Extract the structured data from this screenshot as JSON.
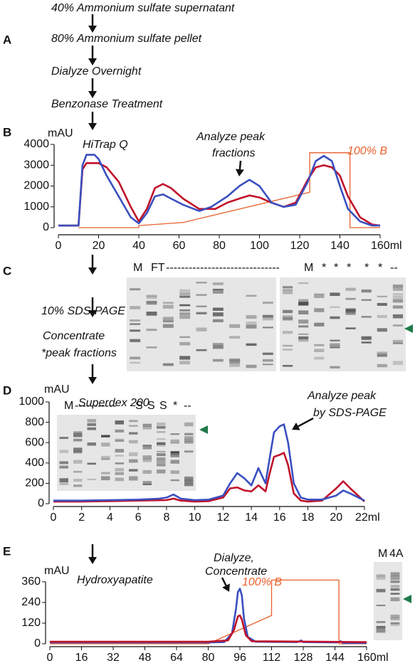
{
  "panel_labels": [
    "A",
    "B",
    "C",
    "D",
    "E"
  ],
  "workflow": {
    "steps": [
      "40% Ammonium sulfate supernatant",
      "80% Ammonium sulfate pellet",
      "Dialyze Overnight",
      "Benzonase Treatment"
    ],
    "c_steps": [
      "10% SDS-PAGE",
      "Concentrate",
      "*peak fractions"
    ]
  },
  "gels": {
    "c_lanes": [
      "M",
      "FT",
      "------------------------------",
      "M",
      "*",
      "*",
      "*",
      "*",
      "*",
      "--"
    ],
    "d_lanes": [
      "M",
      "-----------",
      "S",
      "S",
      "S",
      "*",
      "--"
    ],
    "e_lanes": [
      "M",
      "4A"
    ]
  },
  "chart_data": [
    {
      "type": "line",
      "y_label": "mAU",
      "annotations": [
        "HiTrap Q",
        "Analyze peak",
        "fractions",
        "100% B"
      ],
      "xlim": [
        0,
        160
      ],
      "ylim": [
        0,
        4000
      ],
      "xticks": [
        0,
        20,
        40,
        60,
        80,
        100,
        120,
        140,
        {
          "value": 160,
          "label": "160ml"
        }
      ],
      "yticks": [
        0,
        1000,
        2000,
        3000,
        4000
      ],
      "series": [
        {
          "color": "#e8602c",
          "x": [
            10,
            40,
            40,
            62,
            125,
            125,
            145,
            145,
            160
          ],
          "values": [
            0,
            0,
            100,
            250,
            1700,
            3600,
            3600,
            0,
            0
          ]
        },
        {
          "color": "#c0122a",
          "x": [
            0,
            10,
            12,
            14,
            20,
            24,
            30,
            36,
            40,
            44,
            48,
            52,
            56,
            62,
            70,
            78,
            84,
            90,
            95,
            100,
            106,
            112,
            118,
            124,
            128,
            132,
            136,
            140,
            144,
            150,
            156,
            160
          ],
          "values": [
            100,
            100,
            2800,
            3100,
            3100,
            2900,
            2200,
            1000,
            300,
            900,
            1900,
            2100,
            1900,
            1400,
            900,
            900,
            1200,
            1400,
            1550,
            1450,
            1200,
            1000,
            1200,
            2300,
            2900,
            3000,
            2900,
            2500,
            1500,
            500,
            150,
            100
          ]
        },
        {
          "color": "#3a4fbf",
          "x": [
            0,
            10,
            12,
            14,
            18,
            20,
            24,
            30,
            36,
            40,
            44,
            48,
            52,
            56,
            62,
            70,
            76,
            84,
            90,
            95,
            100,
            106,
            112,
            118,
            124,
            128,
            132,
            136,
            140,
            144,
            150,
            156,
            160
          ],
          "values": [
            100,
            100,
            3000,
            3500,
            3500,
            3300,
            2500,
            1500,
            500,
            200,
            700,
            1500,
            1600,
            1400,
            1100,
            800,
            1000,
            1500,
            2000,
            2300,
            2000,
            1200,
            1000,
            1100,
            2200,
            3200,
            3450,
            3200,
            2000,
            900,
            300,
            100,
            100
          ]
        }
      ]
    },
    {
      "type": "line",
      "y_label": "mAU",
      "annotations": [
        "Superdex 200",
        "Analyze peak",
        "by SDS-PAGE"
      ],
      "xlim": [
        0,
        22
      ],
      "ylim": [
        0,
        1000
      ],
      "xticks": [
        0,
        2,
        4,
        6,
        8,
        10,
        12,
        14,
        16,
        18,
        20,
        {
          "value": 22,
          "label": "22ml"
        }
      ],
      "yticks": [
        0,
        200,
        400,
        600,
        800,
        1000
      ],
      "series": [
        {
          "color": "#c0122a",
          "x": [
            0,
            2,
            4,
            6,
            8,
            8.5,
            9,
            10,
            11,
            12,
            12.5,
            13,
            13.5,
            14,
            14.5,
            15,
            15.3,
            15.6,
            16,
            16.3,
            16.6,
            17,
            17.5,
            18,
            19,
            20,
            20.5,
            21,
            22
          ],
          "values": [
            20,
            20,
            25,
            30,
            35,
            50,
            30,
            20,
            25,
            60,
            150,
            160,
            130,
            120,
            180,
            120,
            300,
            460,
            480,
            500,
            380,
            100,
            30,
            20,
            30,
            150,
            220,
            150,
            20
          ]
        },
        {
          "color": "#3a4fbf",
          "x": [
            0,
            2,
            4,
            6,
            7.5,
            8,
            8.5,
            9,
            10,
            11,
            12,
            12.5,
            13,
            13.5,
            14,
            14.5,
            15,
            15.3,
            15.6,
            16,
            16.3,
            16.6,
            17,
            17.5,
            18,
            19,
            20,
            20.5,
            21,
            22
          ],
          "values": [
            30,
            30,
            35,
            40,
            50,
            60,
            90,
            50,
            35,
            40,
            80,
            200,
            300,
            250,
            180,
            350,
            200,
            450,
            700,
            760,
            780,
            600,
            200,
            60,
            40,
            40,
            80,
            130,
            100,
            30
          ]
        }
      ]
    },
    {
      "type": "line",
      "y_label": "mAU",
      "annotations": [
        "Hydroxyapatite",
        "Dialyze,",
        "Concentrate",
        "100% B"
      ],
      "xlim": [
        0,
        160
      ],
      "ylim": [
        0,
        380
      ],
      "xticks": [
        0,
        16,
        32,
        48,
        64,
        80,
        96,
        112,
        128,
        144,
        {
          "value": 160,
          "label": "160ml"
        }
      ],
      "yticks": [
        0,
        120,
        240,
        360
      ],
      "series": [
        {
          "color": "#e8602c",
          "x": [
            0,
            80,
            112,
            112,
            146,
            146,
            160
          ],
          "values": [
            0,
            0,
            165,
            370,
            370,
            0,
            0
          ]
        },
        {
          "color": "#3a4fbf",
          "x": [
            0,
            80,
            88,
            92,
            94,
            95,
            96,
            97,
            98,
            100,
            104,
            125,
            127,
            128,
            145,
            147,
            148,
            160
          ],
          "values": [
            8,
            8,
            10,
            60,
            200,
            300,
            320,
            280,
            150,
            40,
            12,
            10,
            20,
            10,
            8,
            15,
            5,
            5
          ]
        },
        {
          "color": "#c0122a",
          "x": [
            0,
            80,
            90,
            93,
            95,
            96,
            97,
            99,
            102,
            160
          ],
          "values": [
            12,
            12,
            20,
            80,
            160,
            165,
            140,
            50,
            15,
            10
          ]
        }
      ]
    }
  ]
}
